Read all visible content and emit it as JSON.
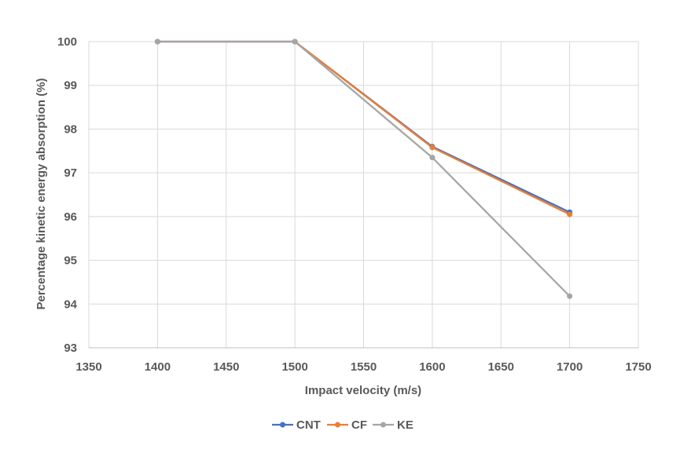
{
  "chart_data": {
    "type": "line",
    "title": "",
    "xlabel": "Impact velocity (m/s)",
    "ylabel": "Percentage kinetic energy absorption (%)",
    "xlim": [
      1350,
      1750
    ],
    "ylim": [
      93,
      100
    ],
    "xticks": [
      "1350",
      "1400",
      "1450",
      "1500",
      "1550",
      "1600",
      "1650",
      "1700",
      "1750"
    ],
    "yticks": [
      "93",
      "94",
      "95",
      "96",
      "97",
      "98",
      "99",
      "100"
    ],
    "x": [
      1400,
      1500,
      1600,
      1700
    ],
    "series": [
      {
        "name": "CNT",
        "color": "#4472C4",
        "values": [
          100,
          100,
          97.6,
          96.1
        ]
      },
      {
        "name": "CF",
        "color": "#ED7D31",
        "values": [
          100,
          100,
          97.58,
          96.05
        ]
      },
      {
        "name": "KE",
        "color": "#A5A5A5",
        "values": [
          100,
          100,
          97.35,
          94.18
        ]
      }
    ],
    "grid": true,
    "legend_position": "bottom"
  }
}
